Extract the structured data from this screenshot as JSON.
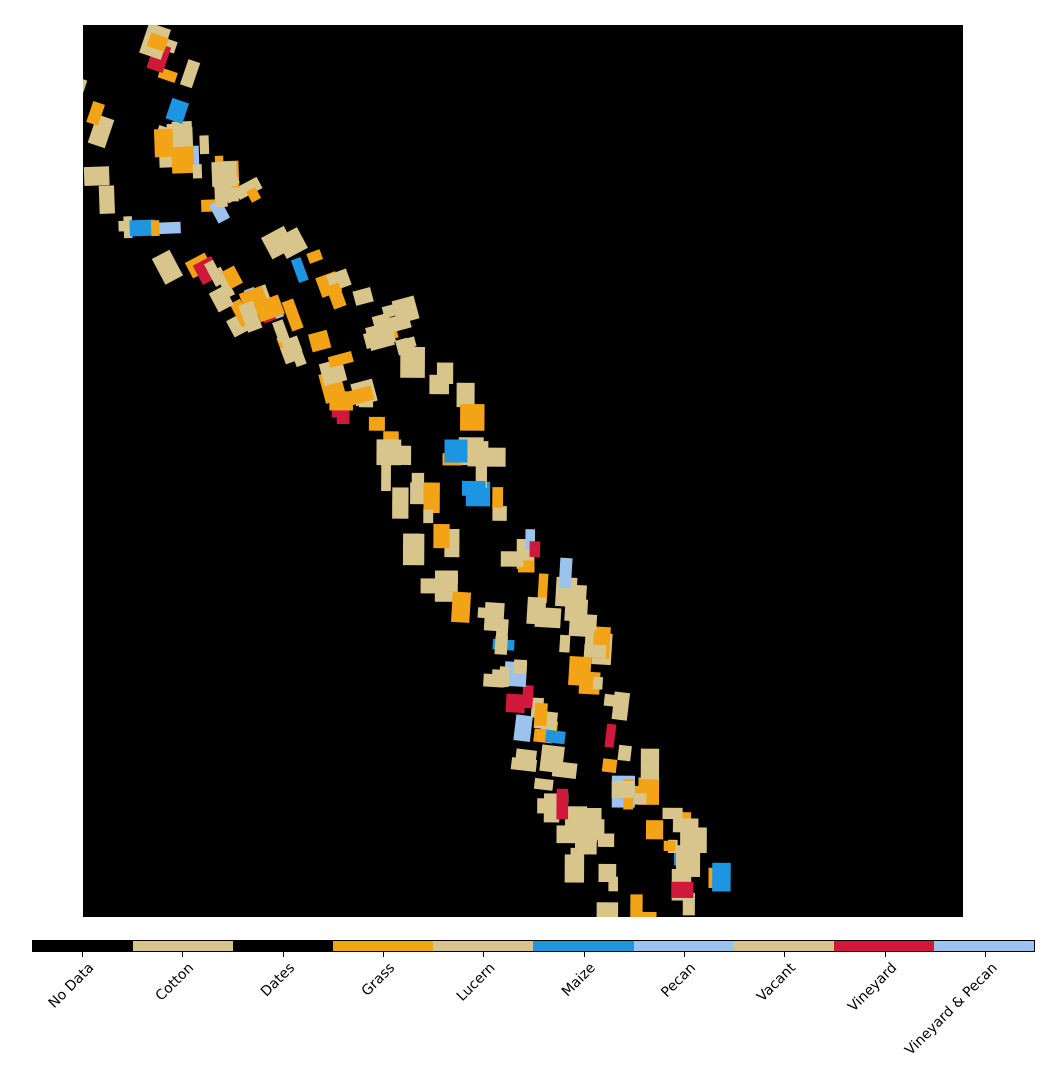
{
  "colorbar": {
    "classes": [
      {
        "label": "No Data",
        "color": "#000000"
      },
      {
        "label": "Cotton",
        "color": "#d8c58c"
      },
      {
        "label": "Dates",
        "color": "#000000"
      },
      {
        "label": "Grass",
        "color": "#f2a316"
      },
      {
        "label": "Lucern",
        "color": "#d8c58c"
      },
      {
        "label": "Maize",
        "color": "#1e95e0"
      },
      {
        "label": "Pecan",
        "color": "#9cc2ee"
      },
      {
        "label": "Vacant",
        "color": "#d8c58c"
      },
      {
        "label": "Vineyard",
        "color": "#d0183b"
      },
      {
        "label": "Vineyard & Pecan",
        "color": "#9cc2ee"
      }
    ]
  },
  "map": {
    "background": "#000000",
    "dominant_class": "Cotton",
    "highlight_colors": [
      "#f2a316",
      "#1e95e0",
      "#9cc2ee",
      "#d0183b"
    ]
  }
}
